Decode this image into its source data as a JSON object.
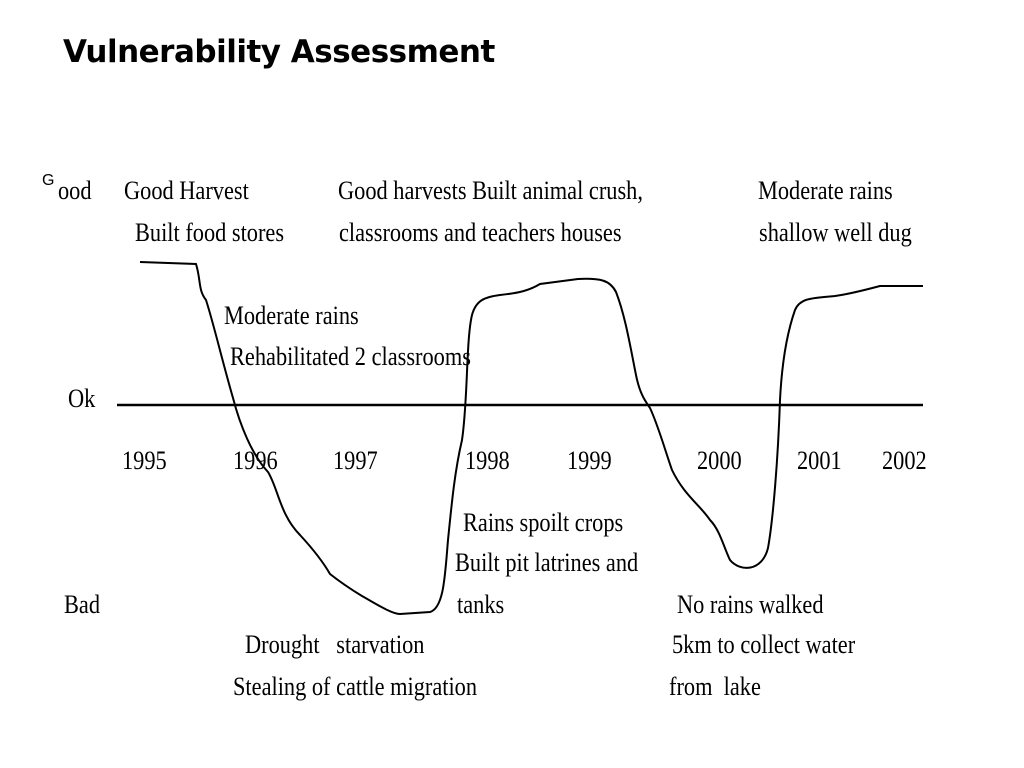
{
  "title": "Vulnerability Assessment",
  "stray_letter": "G",
  "levels": {
    "good": "ood",
    "ok": "Ok",
    "bad": "Bad"
  },
  "years": [
    "1995",
    "1996",
    "1997",
    "1998",
    "1999",
    "2000",
    "2001",
    "2002"
  ],
  "annotations": {
    "y1995": [
      "Good Harvest",
      "Built food stores"
    ],
    "y1996": [
      "Moderate rains",
      "Rehabilitated 2 classrooms"
    ],
    "y1997": [
      "Drought   starvation",
      "Stealing of cattle migration"
    ],
    "y1998_good": [
      "Good harvests Built animal crush,",
      "classrooms and teachers houses"
    ],
    "y1998_bad": [
      "Rains spoilt crops",
      "Built pit latrines and",
      "tanks"
    ],
    "y2000": [
      "No rains walked",
      "5km to collect water",
      "from  lake"
    ],
    "y2001": [
      "Moderate rains",
      "shallow well dug"
    ]
  },
  "colors": {
    "line": "#000000",
    "text": "#000000",
    "background": "#ffffff"
  }
}
